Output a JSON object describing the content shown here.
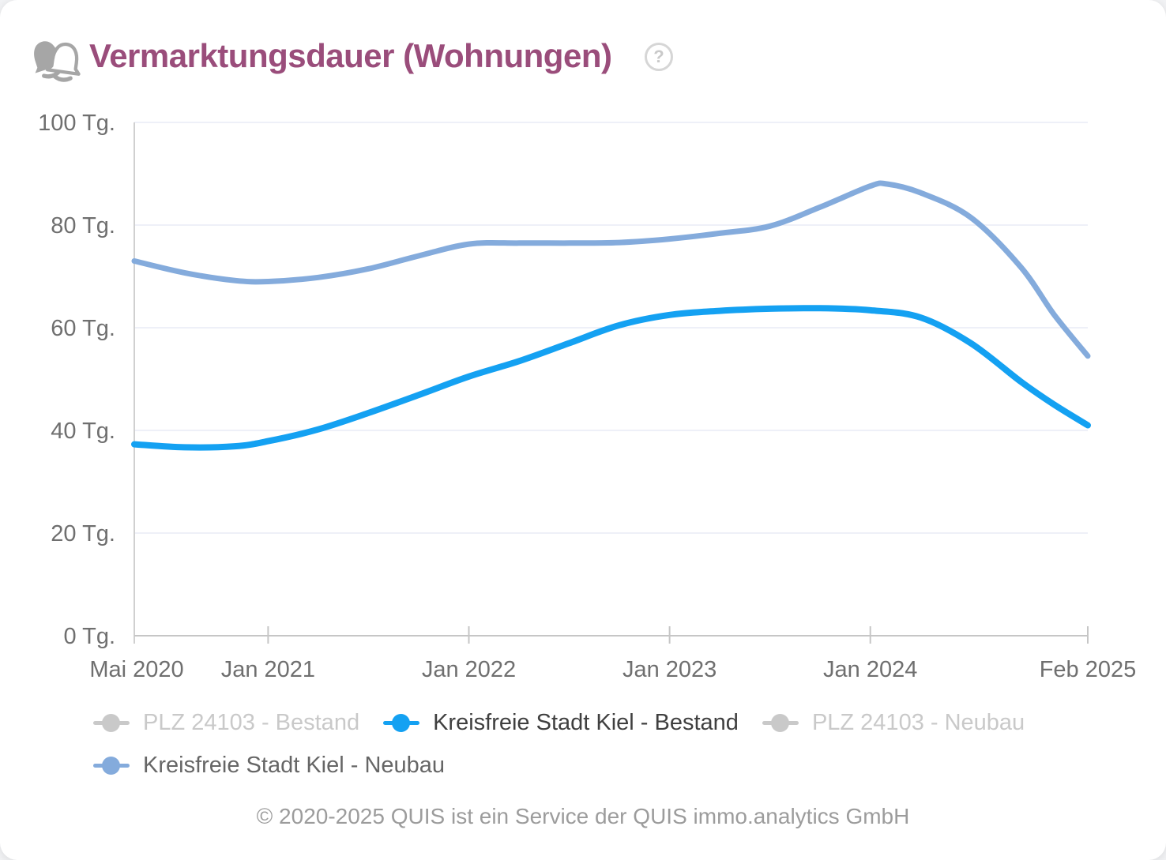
{
  "header": {
    "title": "Vermarktungsdauer (Wohnungen)",
    "help_label": "?"
  },
  "colors": {
    "title": "#9a4d7b",
    "bestand_line": "#14a1f2",
    "neubau_line": "#84abdc",
    "muted_legend": "#c9c9c9",
    "grid": "#e9ebf5",
    "axis": "#c6c6c6"
  },
  "legend": {
    "items": [
      {
        "label": "PLZ 24103 - Bestand",
        "marker_color": "#c9c9c9",
        "text_color": "#c9c9c9",
        "active": false,
        "row": 1
      },
      {
        "label": "Kreisfreie Stadt Kiel - Bestand",
        "marker_color": "#14a1f2",
        "text_color": "#3f3f3f",
        "active": true,
        "row": 1
      },
      {
        "label": "PLZ 24103 - Neubau",
        "marker_color": "#c9c9c9",
        "text_color": "#c9c9c9",
        "active": false,
        "row": 1
      },
      {
        "label": "Kreisfreie Stadt Kiel - Neubau",
        "marker_color": "#84abdc",
        "text_color": "#666666",
        "active": true,
        "row": 2
      }
    ]
  },
  "footer": {
    "copyright": "© 2020-2025 QUIS ist ein Service der QUIS immo.analytics GmbH"
  },
  "chart_data": {
    "type": "line",
    "title": "Vermarktungsdauer (Wohnungen)",
    "unit": "Tg.",
    "grid": true,
    "legend_position": "bottom",
    "months_total": 57,
    "x_axis": {
      "ticks": [
        {
          "label": "Mai 2020",
          "month": 0
        },
        {
          "label": "Jan 2021",
          "month": 8
        },
        {
          "label": "Jan 2022",
          "month": 20
        },
        {
          "label": "Jan 2023",
          "month": 32
        },
        {
          "label": "Jan 2024",
          "month": 44
        },
        {
          "label": "Feb 2025",
          "month": 57
        }
      ]
    },
    "y_axis": {
      "min": 0,
      "max": 100,
      "ticks": [
        {
          "value": 0,
          "label": "0 Tg."
        },
        {
          "value": 20,
          "label": "20 Tg."
        },
        {
          "value": 40,
          "label": "40 Tg."
        },
        {
          "value": 60,
          "label": "60 Tg."
        },
        {
          "value": 80,
          "label": "80 Tg."
        },
        {
          "value": 100,
          "label": "100 Tg."
        }
      ]
    },
    "series": [
      {
        "name": "PLZ 24103 - Bestand",
        "color": "#c9c9c9",
        "visible": false,
        "points": []
      },
      {
        "name": "Kreisfreie Stadt Kiel - Bestand",
        "color": "#14a1f2",
        "visible": true,
        "points": [
          [
            0,
            37.3
          ],
          [
            3,
            36.7
          ],
          [
            6,
            36.9
          ],
          [
            8,
            37.9
          ],
          [
            11,
            40.2
          ],
          [
            14,
            43.4
          ],
          [
            17,
            46.9
          ],
          [
            20,
            50.5
          ],
          [
            23,
            53.5
          ],
          [
            26,
            57
          ],
          [
            29,
            60.5
          ],
          [
            32,
            62.5
          ],
          [
            35,
            63.3
          ],
          [
            38,
            63.7
          ],
          [
            41,
            63.8
          ],
          [
            44,
            63.4
          ],
          [
            47,
            62
          ],
          [
            50,
            57
          ],
          [
            53,
            49.5
          ],
          [
            55,
            45
          ],
          [
            57,
            41
          ]
        ]
      },
      {
        "name": "PLZ 24103 - Neubau",
        "color": "#c9c9c9",
        "visible": false,
        "points": []
      },
      {
        "name": "Kreisfreie Stadt Kiel - Neubau",
        "color": "#84abdc",
        "visible": true,
        "points": [
          [
            0,
            73
          ],
          [
            3,
            70.7
          ],
          [
            6,
            69.2
          ],
          [
            8,
            69
          ],
          [
            11,
            69.8
          ],
          [
            14,
            71.5
          ],
          [
            17,
            74
          ],
          [
            20,
            76.3
          ],
          [
            23,
            76.5
          ],
          [
            26,
            76.5
          ],
          [
            29,
            76.6
          ],
          [
            32,
            77.3
          ],
          [
            35,
            78.4
          ],
          [
            38,
            79.8
          ],
          [
            41,
            83.5
          ],
          [
            44,
            87.6
          ],
          [
            45,
            88
          ],
          [
            47,
            86.3
          ],
          [
            50,
            81.5
          ],
          [
            53,
            71.8
          ],
          [
            55,
            62.5
          ],
          [
            57,
            54.5
          ]
        ]
      }
    ]
  }
}
